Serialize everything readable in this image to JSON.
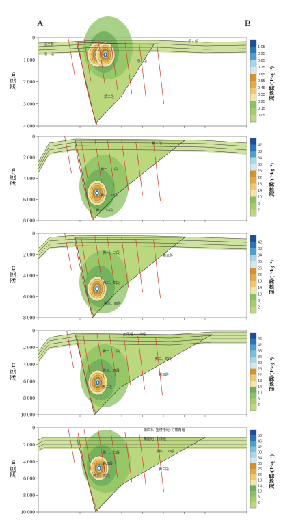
{
  "corner_labels": {
    "left": "A",
    "right": "B"
  },
  "chart_data": [
    {
      "type": "heatmap",
      "ylabel": "深度/m",
      "ylim": [
        0,
        4000
      ],
      "yticks": [
        "0",
        "1 000",
        "2 000",
        "3 000",
        "4 000"
      ],
      "colorbar": {
        "label": "流体势/(J·kg⁻¹)",
        "ticks": [
          "1.05",
          "0.95",
          "0.85",
          "0.75",
          "0.65",
          "0.55",
          "0.45",
          "0.35",
          "0.25",
          "0.15",
          "0.05"
        ]
      },
      "formation_labels": [
        "须二段",
        "须二段",
        "须二段",
        "须二段",
        "须三段"
      ]
    },
    {
      "type": "heatmap",
      "ylabel": "深度/m",
      "ylim": [
        0,
        8000
      ],
      "yticks": [
        "0",
        "2 000",
        "4 000",
        "6 000",
        "8 000"
      ],
      "colorbar": {
        "label": "流体势/(J·kg⁻¹)",
        "ticks": [
          "42",
          "38",
          "34",
          "30",
          "26",
          "22",
          "18",
          "14",
          "10",
          "6",
          "2"
        ]
      },
      "formation_labels": [
        "腾一、二段",
        "腾三、四段",
        "腾三段",
        "腾三、四段"
      ]
    },
    {
      "type": "heatmap",
      "ylabel": "深度/m",
      "ylim": [
        0,
        8000
      ],
      "yticks": [
        "0",
        "2 000",
        "4 000",
        "6 000",
        "8 000"
      ],
      "colorbar": {
        "label": "流体势/(J·kg⁻¹)",
        "ticks": [
          "42",
          "38",
          "34",
          "30",
          "26",
          "22",
          "18",
          "14",
          "10",
          "6",
          "2"
        ]
      },
      "formation_labels": [
        "腾一、二段",
        "腾三、四段",
        "腾三段",
        "腾三、四段"
      ]
    },
    {
      "type": "heatmap",
      "ylabel": "深度/m",
      "ylim": [
        0,
        10000
      ],
      "yticks": [
        "0",
        "2 000",
        "4 000",
        "6 000",
        "8 000",
        "10 000"
      ],
      "colorbar": {
        "label": "流体势/(J·kg⁻¹)",
        "ticks": [
          "46",
          "42",
          "38",
          "34",
          "30",
          "26",
          "22",
          "18",
          "14",
          "10",
          "6",
          "2"
        ]
      },
      "formation_labels": [
        "角尾组+下洋组",
        "腾一、二段",
        "腾三、四段",
        "腾三段",
        "腾三段",
        "腾三、四段"
      ]
    },
    {
      "type": "heatmap",
      "ylabel": "深度/m",
      "ylim": [
        0,
        10000
      ],
      "yticks": [
        "0",
        "2 000",
        "4 000",
        "6 000",
        "8 000",
        "10 000"
      ],
      "colorbar": {
        "label": "流体势/(J·kg⁻¹)",
        "ticks": [
          "50",
          "46",
          "42",
          "38",
          "34",
          "30",
          "26",
          "22",
          "18",
          "14",
          "10",
          "6",
          "2"
        ]
      },
      "formation_labels": [
        "第四系+望楼港组+灯楼角组",
        "角尾组+下洋组",
        "腾一、二段",
        "腾三、四段",
        "腾三段",
        "腾三段",
        "腾三、四段"
      ]
    }
  ]
}
